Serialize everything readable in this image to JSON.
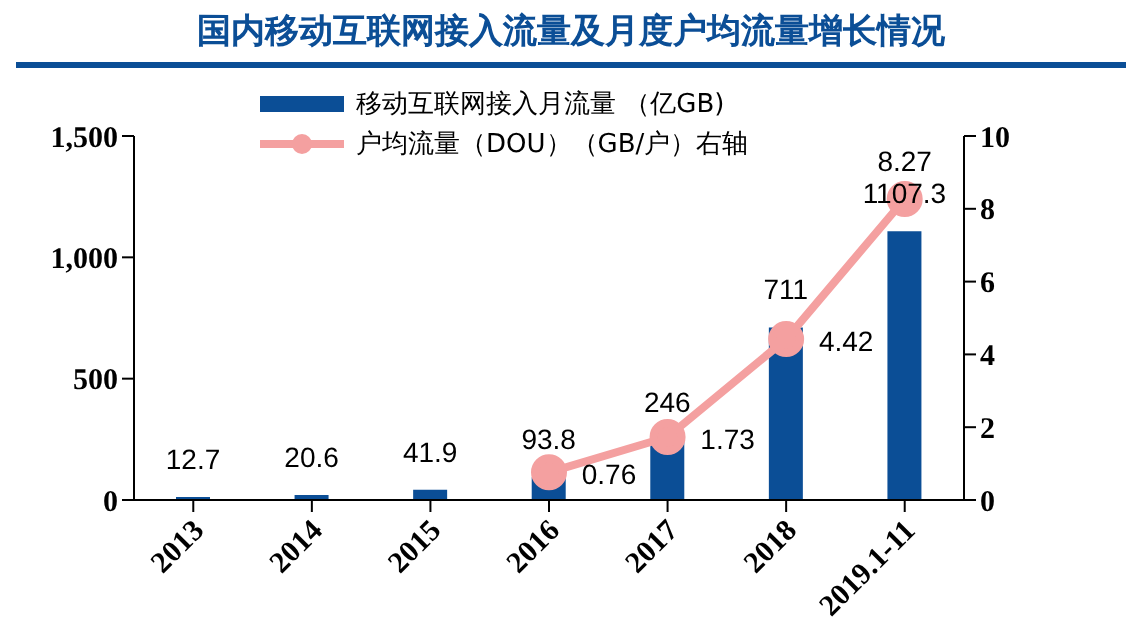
{
  "chart_data": {
    "type": "bar",
    "title": "国内移动互联网接入流量及月度户均流量增长情况",
    "categories": [
      "2013",
      "2014",
      "2015",
      "2016",
      "2017",
      "2018",
      "2019.1-11"
    ],
    "series": [
      {
        "name": "移动互联网接入月流量 （亿GB)",
        "color": "#0b4e96",
        "values": [
          12.7,
          20.6,
          41.9,
          93.8,
          246,
          711,
          1107.3
        ]
      },
      {
        "name": "户均流量（DOU）（GB/户）右轴",
        "type": "line",
        "axis": "y2",
        "color": "#f4a0a0",
        "values": [
          null,
          null,
          null,
          0.76,
          1.73,
          4.42,
          8.27
        ]
      }
    ],
    "ylim": [
      0,
      1500
    ],
    "yticks": [
      0,
      {
        "value": 500,
        "label": "500"
      },
      {
        "value": 1000,
        "label": "1,000"
      },
      {
        "value": 1500,
        "label": "1,500"
      }
    ],
    "y2lim": [
      0,
      10
    ],
    "y2ticks": [
      0,
      2,
      4,
      6,
      8,
      10
    ],
    "data_labels": true,
    "legend": "top",
    "grid": false,
    "marker": "circle"
  }
}
